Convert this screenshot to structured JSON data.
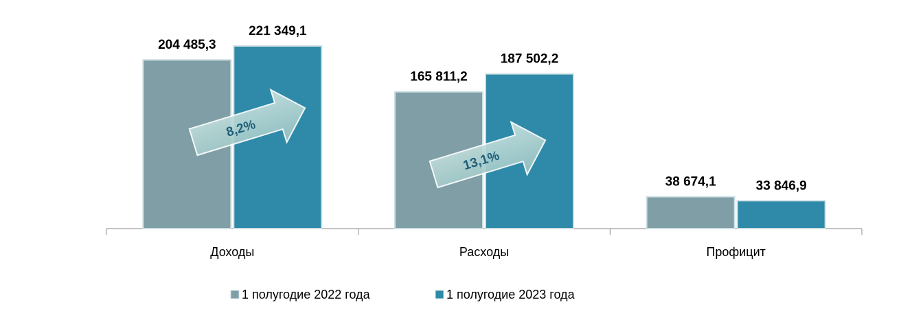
{
  "chart_data": {
    "type": "bar",
    "categories": [
      "Доходы",
      "Расходы",
      "Профицит"
    ],
    "series": [
      {
        "name": "1 полугодие 2022 года",
        "color": "#7f9ea6",
        "values": [
          204485.3,
          165811.2,
          38674.1
        ],
        "value_labels": [
          "204 485,3",
          "165 811,2",
          "38 674,1"
        ]
      },
      {
        "name": "1 полугодие 2023 года",
        "color": "#2e8aa8",
        "values": [
          221349.1,
          187502.2,
          33846.9
        ],
        "value_labels": [
          "221 349,1",
          "187 502,2",
          "33 846,9"
        ]
      }
    ],
    "annotations": [
      {
        "text": "8,2%"
      },
      {
        "text": "13,1%"
      }
    ]
  }
}
